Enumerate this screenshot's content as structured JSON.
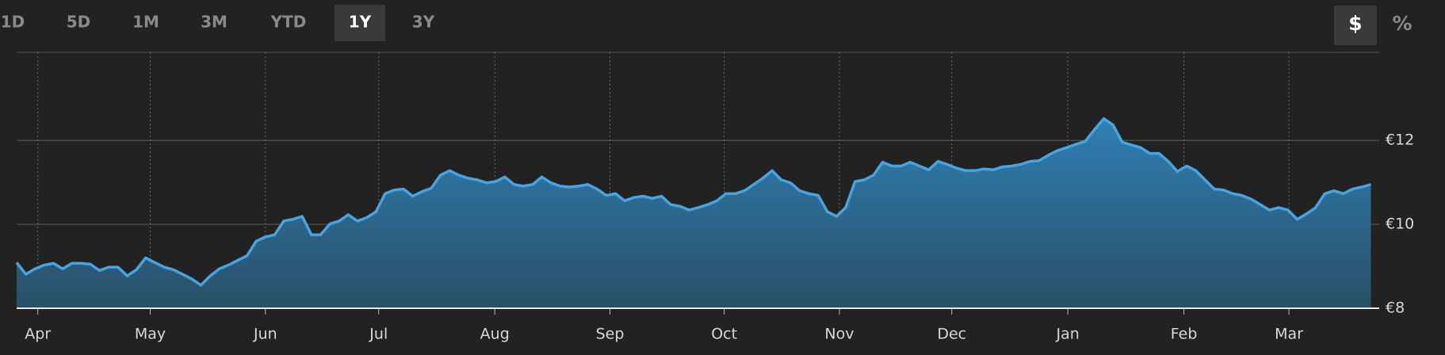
{
  "range_buttons": [
    "1D",
    "5D",
    "1M",
    "3M",
    "YTD",
    "1Y",
    "3Y"
  ],
  "unit_buttons": [
    "$",
    "%"
  ],
  "chart_data": {
    "type": "area",
    "series": [
      {
        "color": "#4aa3df",
        "values": [
          9.09,
          8.81,
          8.94,
          9.03,
          9.07,
          8.94,
          9.07,
          9.07,
          9.05,
          8.9,
          8.98,
          8.98,
          8.77,
          8.92,
          9.2,
          9.09,
          8.98,
          8.92,
          8.81,
          8.7,
          8.55,
          8.77,
          8.94,
          9.03,
          9.14,
          9.25,
          9.6,
          9.7,
          9.75,
          10.08,
          10.12,
          10.19,
          9.75,
          9.75,
          10.01,
          10.08,
          10.23,
          10.08,
          10.16,
          10.3,
          10.73,
          10.82,
          10.84,
          10.67,
          10.78,
          10.86,
          11.17,
          11.28,
          11.17,
          11.1,
          11.06,
          10.99,
          11.02,
          11.13,
          10.95,
          10.91,
          10.95,
          11.13,
          10.99,
          10.91,
          10.89,
          10.91,
          10.95,
          10.84,
          10.69,
          10.73,
          10.56,
          10.64,
          10.67,
          10.62,
          10.67,
          10.47,
          10.43,
          10.34,
          10.4,
          10.47,
          10.56,
          10.73,
          10.73,
          10.8,
          10.95,
          11.1,
          11.28,
          11.06,
          10.99,
          10.8,
          10.73,
          10.69,
          10.3,
          10.19,
          10.4,
          11.02,
          11.06,
          11.17,
          11.48,
          11.39,
          11.39,
          11.48,
          11.39,
          11.3,
          11.5,
          11.43,
          11.34,
          11.28,
          11.28,
          11.32,
          11.3,
          11.37,
          11.39,
          11.43,
          11.5,
          11.52,
          11.65,
          11.76,
          11.83,
          11.91,
          11.98,
          12.26,
          12.52,
          12.37,
          11.96,
          11.89,
          11.83,
          11.69,
          11.69,
          11.5,
          11.26,
          11.39,
          11.28,
          11.06,
          10.84,
          10.82,
          10.73,
          10.69,
          10.6,
          10.47,
          10.34,
          10.4,
          10.34,
          10.12,
          10.25,
          10.4,
          10.73,
          10.8,
          10.73,
          10.84,
          10.89,
          10.95
        ]
      }
    ],
    "xlim": [
      0,
      147.9
    ],
    "xticks": [
      {
        "value": 2.3,
        "label": "Apr"
      },
      {
        "value": 14.5,
        "label": "May"
      },
      {
        "value": 27,
        "label": "Jun"
      },
      {
        "value": 39.3,
        "label": "Jul"
      },
      {
        "value": 51.9,
        "label": "Aug"
      },
      {
        "value": 64.4,
        "label": "Sep"
      },
      {
        "value": 76.8,
        "label": "Oct"
      },
      {
        "value": 89.3,
        "label": "Nov"
      },
      {
        "value": 101.5,
        "label": "Dec"
      },
      {
        "value": 114.1,
        "label": "Jan"
      },
      {
        "value": 126.7,
        "label": "Feb"
      },
      {
        "value": 138.1,
        "label": "Mar"
      }
    ],
    "ylim": [
      8,
      14.1
    ],
    "yticks": [
      {
        "value": 8,
        "label": "€8"
      },
      {
        "value": 10,
        "label": "€10"
      },
      {
        "value": 12,
        "label": "€12"
      }
    ],
    "grid": true
  }
}
